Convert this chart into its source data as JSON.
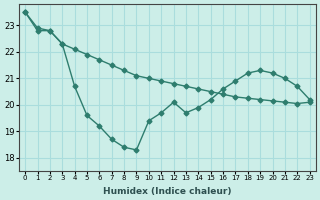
{
  "xlabel": "Humidex (Indice chaleur)",
  "ylabel": "",
  "background_color": "#cceee8",
  "grid_color": "#aadddd",
  "line_color": "#2e7d6e",
  "xlim": [
    -0.5,
    23.5
  ],
  "ylim": [
    17.5,
    23.8
  ],
  "yticks": [
    18,
    19,
    20,
    21,
    22,
    23
  ],
  "xticks": [
    0,
    1,
    2,
    3,
    4,
    5,
    6,
    7,
    8,
    9,
    10,
    11,
    12,
    13,
    14,
    15,
    16,
    17,
    18,
    19,
    20,
    21,
    22,
    23
  ],
  "xtick_labels": [
    "0",
    "1",
    "2",
    "3",
    "4",
    "5",
    "6",
    "7",
    "8",
    "9",
    "10",
    "11",
    "12",
    "13",
    "14",
    "15",
    "16",
    "17",
    "18",
    "19",
    "20",
    "21",
    "22",
    "23"
  ],
  "line1_x": [
    0,
    1,
    2,
    3,
    4,
    5,
    6,
    7,
    8,
    9,
    10,
    11,
    12,
    13,
    14,
    15,
    16,
    17,
    18,
    19,
    20,
    21,
    22,
    23
  ],
  "line1_y": [
    23.5,
    22.8,
    22.8,
    22.3,
    20.7,
    19.6,
    19.2,
    18.7,
    18.4,
    18.3,
    19.4,
    19.7,
    20.1,
    19.7,
    19.9,
    20.2,
    20.6,
    20.9,
    21.2,
    21.3,
    21.2,
    21.0,
    20.7,
    20.2
  ],
  "line2_x": [
    0,
    1,
    2,
    3,
    4,
    5,
    6,
    7,
    8,
    9,
    10,
    11,
    12,
    13,
    14,
    15,
    16,
    17,
    18,
    19,
    20,
    21,
    22,
    23
  ],
  "line2_y": [
    23.5,
    22.9,
    22.8,
    22.3,
    22.1,
    21.9,
    21.7,
    21.5,
    21.3,
    21.1,
    21.0,
    20.9,
    20.8,
    20.7,
    20.6,
    20.5,
    20.4,
    20.3,
    20.25,
    20.2,
    20.15,
    20.1,
    20.05,
    20.1
  ]
}
